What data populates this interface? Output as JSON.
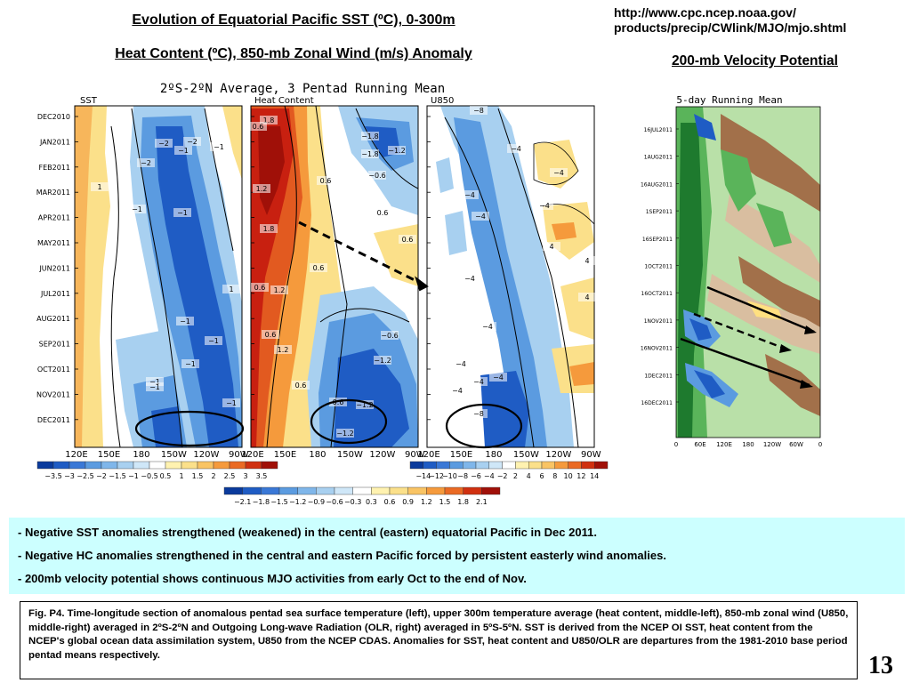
{
  "header": {
    "title_line1": "Evolution of Equatorial Pacific SST (ºC), 0-300m",
    "title_line2": "Heat Content (ºC), 850-mb Zonal Wind (m/s) Anomaly",
    "url_line1": "http://www.cpc.ncep.noaa.gov/",
    "url_line2": "products/precip/CWlink/MJO/mjo.shtml",
    "vp_title": "200-mb Velocity Potential "
  },
  "chart_data": [
    {
      "type": "heatmap",
      "title": "2ºS-2ºN Average, 3 Pentad Running Mean",
      "panels": [
        "SST",
        "Heat Content",
        "U850"
      ],
      "y_ticks": [
        "DEC2010",
        "JAN2011",
        "FEB2011",
        "MAR2011",
        "APR2011",
        "MAY2011",
        "JUN2011",
        "JUL2011",
        "AUG2011",
        "SEP2011",
        "OCT2011",
        "NOV2011",
        "DEC2011"
      ],
      "x_ticks_sst": [
        "120E",
        "150E",
        "180",
        "150W",
        "120W",
        "90W"
      ],
      "x_ticks_hc": [
        "120E",
        "150E",
        "180",
        "150W",
        "120W",
        "90W"
      ],
      "x_ticks_u850": [
        "120E",
        "150E",
        "180",
        "150W",
        "120W",
        "90W"
      ],
      "colorbars": {
        "sst": [
          "−3.5",
          "−3",
          "−2.5",
          "−2",
          "−1.5",
          "−1",
          "−0.5",
          "0.5",
          "1",
          "1.5",
          "2",
          "2.5",
          "3",
          "3.5"
        ],
        "hc": [
          "−2.1",
          "−1.8",
          "−1.5",
          "−1.2",
          "−0.9",
          "−0.6",
          "−0.3",
          "0.3",
          "0.6",
          "0.9",
          "1.2",
          "1.5",
          "1.8",
          "2.1"
        ],
        "u850": [
          "−14",
          "−12",
          "−10",
          "−8",
          "−6",
          "−4",
          "−2",
          "2",
          "4",
          "6",
          "8",
          "10",
          "12",
          "14"
        ]
      },
      "contour_labels": {
        "sst": [
          "−2",
          "−2",
          "−1",
          "−1",
          "−2",
          "1",
          "−1",
          "−1",
          "1",
          "−1",
          "−1",
          "−1",
          "−1",
          "−1",
          "−1"
        ],
        "hc": [
          "1.8",
          "0.6",
          "1.2",
          "0.6",
          "1.8",
          "0.6",
          "0.6",
          "1.2",
          "0.6",
          "1.2",
          "0.6",
          "−1.8",
          "−1.8",
          "−1.2",
          "−0.6",
          "0.6",
          "0.6",
          "−0.6",
          "−1.2",
          "0.6",
          "−1.2",
          "−1.2"
        ],
        "u850": [
          "−8",
          "−4",
          "−4",
          "−4",
          "−4",
          "−4",
          "4",
          "−4",
          "4",
          "4",
          "−4",
          "−4",
          "−4",
          "−4",
          "−4",
          "−8"
        ]
      }
    },
    {
      "type": "heatmap",
      "title": "5-day Running Mean",
      "y_ticks": [
        "16JUL2011",
        "1AUG2011",
        "16AUG2011",
        "1SEP2011",
        "16SEP2011",
        "1OCT2011",
        "16OCT2011",
        "1NOV2011",
        "16NOV2011",
        "1DEC2011",
        "16DEC2011"
      ],
      "x_ticks": [
        "0",
        "60E",
        "120E",
        "180",
        "120W",
        "60W",
        "0"
      ]
    }
  ],
  "bullets": [
    "- Negative SST anomalies strengthened (weakened)  in the central (eastern) equatorial Pacific in Dec 2011.",
    "- Negative HC anomalies strengthened in the central and eastern Pacific forced by  persistent easterly wind anomalies.",
    "- 200mb velocity potential shows continuous MJO activities from  early Oct to the end of Nov."
  ],
  "caption": "Fig. P4. Time-longitude section of anomalous pentad sea surface temperature (left), upper 300m temperature average (heat content, middle-left), 850-mb zonal wind (U850, middle-right) averaged in 2ºS-2ºN and Outgoing Long-wave Radiation (OLR, right) averaged in 5ºS-5ºN. SST is derived from the NCEP OI SST, heat content from the NCEP's global ocean data assimilation system, U850 from the NCEP CDAS. Anomalies for SST, heat content and U850/OLR are departures from the 1981-2010 base period pentad means respectively.",
  "page_number": "13",
  "colors": {
    "blue_dark": "#1f5cc4",
    "blue_mid": "#5b9be0",
    "blue_light": "#a8d0f0",
    "orange": "#f59a3c",
    "red": "#d03010",
    "yellow": "#fbe08a",
    "green_dark": "#1e7a2e",
    "green_mid": "#5ab45a",
    "green_light": "#b9e0a8",
    "brown": "#a2704a",
    "tan": "#d9bea0",
    "bullet_bg": "#ccffff"
  }
}
